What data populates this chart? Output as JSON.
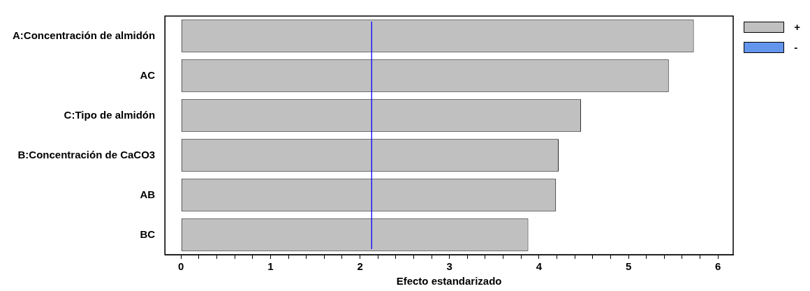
{
  "chart_data": {
    "type": "bar",
    "orientation": "horizontal",
    "xlabel": "Efecto estandarizado",
    "categories": [
      "A:Concentración de almidón",
      "AC",
      "C:Tipo de almidón",
      "B:Concentración de CaCO3",
      "AB",
      "BC"
    ],
    "series": [
      {
        "name": "+",
        "color": "#c0c0c0",
        "values": [
          5.73,
          5.45,
          4.47,
          4.22,
          4.19,
          3.88
        ]
      },
      {
        "name": "-",
        "color": "#6495ed",
        "values": [
          null,
          null,
          null,
          null,
          null,
          null
        ]
      }
    ],
    "xlim": [
      -0.18,
      6.17
    ],
    "xticks": [
      0,
      {
        "value": 0.2,
        "label": null
      },
      {
        "value": 0.4,
        "label": null
      },
      {
        "value": 0.6,
        "label": null
      },
      {
        "value": 0.8,
        "label": null
      },
      1,
      {
        "value": 1.2,
        "label": null
      },
      {
        "value": 1.4,
        "label": null
      },
      {
        "value": 1.6,
        "label": null
      },
      {
        "value": 1.8,
        "label": null
      },
      2,
      {
        "value": 2.2,
        "label": null
      },
      {
        "value": 2.4,
        "label": null
      },
      {
        "value": 2.6,
        "label": null
      },
      {
        "value": 2.8,
        "label": null
      },
      3,
      {
        "value": 3.2,
        "label": null
      },
      {
        "value": 3.4,
        "label": null
      },
      {
        "value": 3.6,
        "label": null
      },
      {
        "value": 3.8,
        "label": null
      },
      4,
      {
        "value": 4.2,
        "label": null
      },
      {
        "value": 4.4,
        "label": null
      },
      {
        "value": 4.6,
        "label": null
      },
      {
        "value": 4.8,
        "label": null
      },
      5,
      {
        "value": 5.2,
        "label": null
      },
      {
        "value": 5.4,
        "label": null
      },
      {
        "value": 5.6,
        "label": null
      },
      {
        "value": 5.8,
        "label": null
      },
      6
    ],
    "ref_lines": [
      {
        "axis": "x",
        "value": 2.13,
        "color": "#0000ff"
      }
    ],
    "grid": false,
    "legend": "top right"
  }
}
